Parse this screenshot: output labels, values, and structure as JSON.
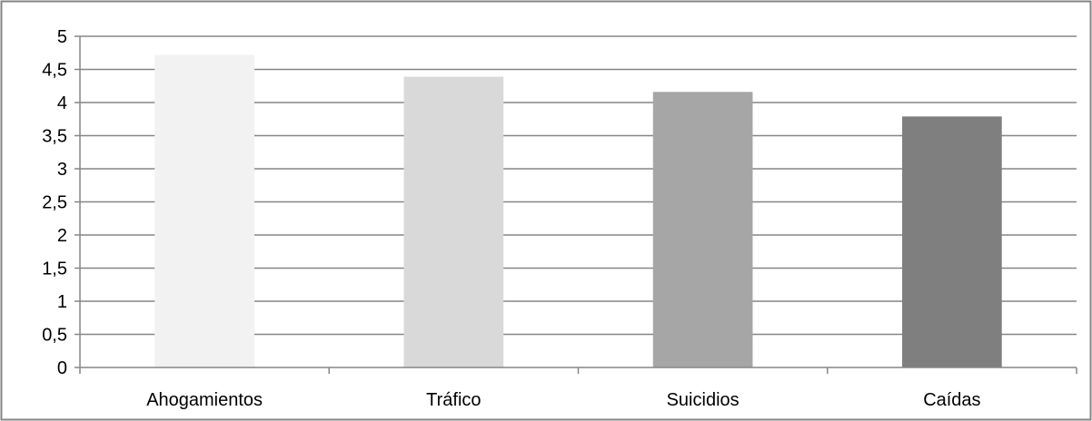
{
  "chart_data": {
    "type": "bar",
    "title": "",
    "xlabel": "",
    "ylabel": "",
    "categories": [
      "Ahogamientos",
      "Tráfico",
      "Suicidios",
      "Caídas"
    ],
    "values": [
      4.72,
      4.39,
      4.16,
      3.79
    ],
    "ylim": [
      0,
      5
    ],
    "yticks": [
      "0",
      "0,5",
      "1",
      "1,5",
      "2",
      "2,5",
      "3",
      "3,5",
      "4",
      "4,5",
      "5"
    ],
    "grid": true,
    "legend": "none",
    "colors": {
      "bars": [
        "#f2f2f2",
        "#d9d9d9",
        "#a6a6a6",
        "#7f7f7f"
      ],
      "gridlines": "#868686",
      "axis": "#868686",
      "frame": "#868686"
    }
  }
}
